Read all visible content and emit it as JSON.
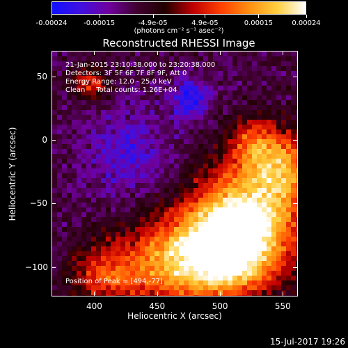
{
  "colorbar": {
    "tick_labels": [
      "-0.00024",
      "-0.00015",
      "-4.9e-05",
      "4.9e-05",
      "0.00015",
      "0.00024"
    ],
    "tick_values": [
      -0.00024,
      -0.00015,
      -4.9e-05,
      4.9e-05,
      0.00015,
      0.00024
    ],
    "range": [
      -0.00024,
      0.00024
    ],
    "units": "(photons cm⁻² s⁻¹ asec⁻²)",
    "colormap_stops": [
      "#1010ff",
      "#4010e0",
      "#7000a0",
      "#400030",
      "#200000",
      "#c00000",
      "#ff4000",
      "#ff9010",
      "#ffd040",
      "#ffffff"
    ]
  },
  "title": "Reconstructed RHESSI Image",
  "annotations": {
    "time_range": "21-Jan-2015 23:10:38.000 to 23:20:38.000",
    "detectors": "Detectors: 3F 5F 6F 7F 8F 9F, Att 0",
    "energy_range": "Energy Range: 12.0 - 25.0 keV",
    "clean_counts": "Clean     Total counts: 1.26E+04",
    "peak": "Position of Peak = [494,-77]"
  },
  "axes": {
    "xlabel": "Heliocentric X (arcsec)",
    "ylabel": "Heliocentric Y (arcsec)",
    "xticks": [
      400,
      450,
      500,
      550
    ],
    "xtick_labels": [
      "400",
      "450",
      "500",
      "550"
    ],
    "yticks": [
      50,
      0,
      -50,
      -100
    ],
    "ytick_labels": [
      "50",
      "0",
      "−50",
      "−100"
    ],
    "xlim": [
      366,
      562
    ],
    "ylim": [
      -123,
      70
    ]
  },
  "timestamp": "15-Jul-2017 19:26"
}
